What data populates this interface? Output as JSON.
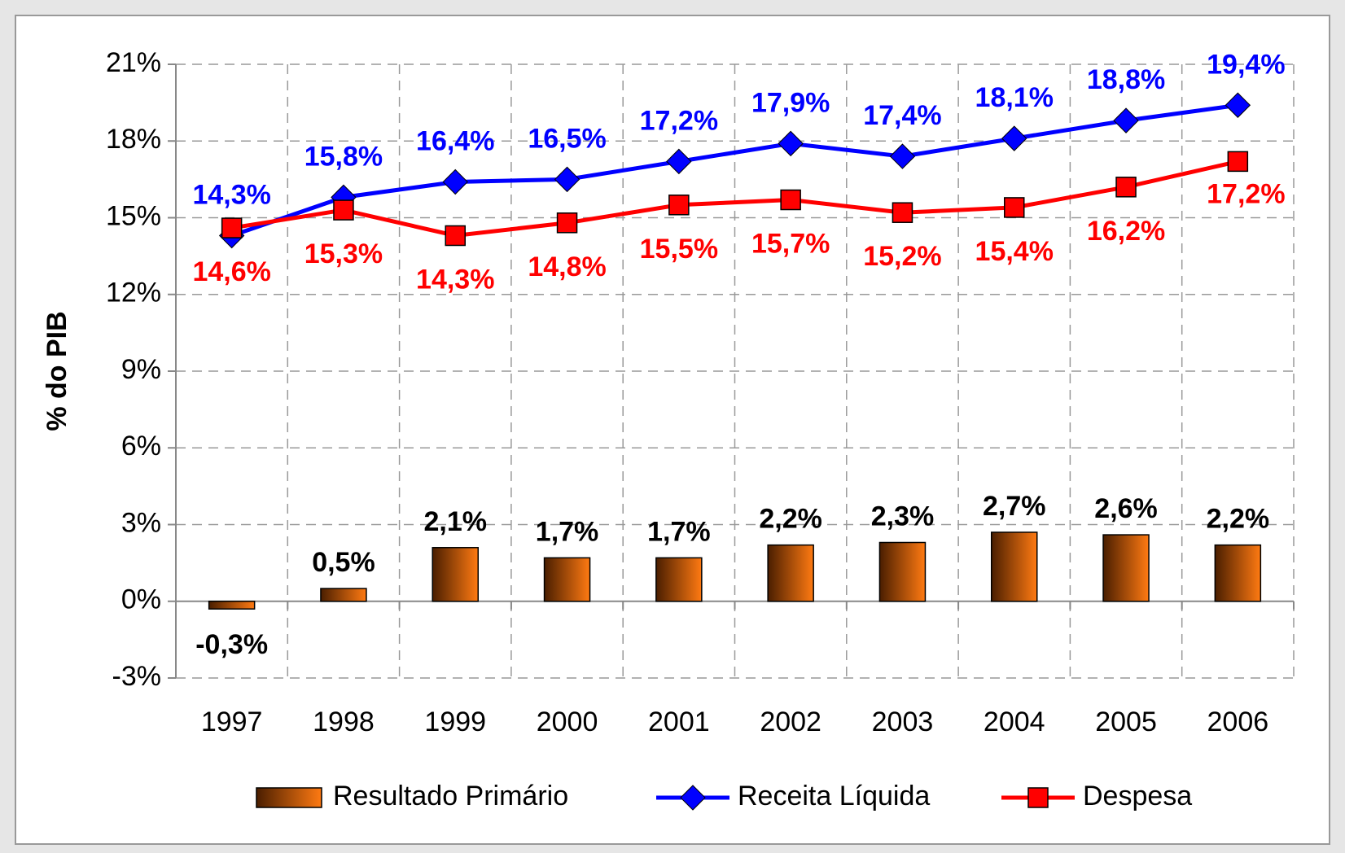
{
  "chart_data": {
    "type": "combo",
    "y_label": "% do PIB",
    "categories": [
      "1997",
      "1998",
      "1999",
      "2000",
      "2001",
      "2002",
      "2003",
      "2004",
      "2005",
      "2006"
    ],
    "ylim": [
      -3,
      21
    ],
    "yticks": [
      {
        "value": -3,
        "label": "-3%"
      },
      {
        "value": 0,
        "label": "0%"
      },
      {
        "value": 3,
        "label": "3%"
      },
      {
        "value": 6,
        "label": "6%"
      },
      {
        "value": 9,
        "label": "9%"
      },
      {
        "value": 12,
        "label": "12%"
      },
      {
        "value": 15,
        "label": "15%"
      },
      {
        "value": 18,
        "label": "18%"
      },
      {
        "value": 21,
        "label": "21%"
      }
    ],
    "grid": true,
    "legend": "bottom",
    "series": [
      {
        "name": "Resultado Primário",
        "type": "bar",
        "color": "#ff7a12",
        "label_color": "#000000",
        "values": [
          -0.3,
          0.5,
          2.1,
          1.7,
          1.7,
          2.2,
          2.3,
          2.7,
          2.6,
          2.2
        ],
        "value_labels": [
          "-0,3%",
          "0,5%",
          "2,1%",
          "1,7%",
          "1,7%",
          "2,2%",
          "2,3%",
          "2,7%",
          "2,6%",
          "2,2%"
        ]
      },
      {
        "name": "Receita Líquida",
        "type": "line",
        "marker": "diamond",
        "color": "#0000ff",
        "label_color": "#0000ff",
        "values": [
          14.3,
          15.8,
          16.4,
          16.5,
          17.2,
          17.9,
          17.4,
          18.1,
          18.8,
          19.4
        ],
        "value_labels": [
          "14,3%",
          "15,8%",
          "16,4%",
          "16,5%",
          "17,2%",
          "17,9%",
          "17,4%",
          "18,1%",
          "18,8%",
          "19,4%"
        ]
      },
      {
        "name": "Despesa",
        "type": "line",
        "marker": "square",
        "color": "#ff0000",
        "label_color": "#ff0000",
        "values": [
          14.6,
          15.3,
          14.3,
          14.8,
          15.5,
          15.7,
          15.2,
          15.4,
          16.2,
          17.2
        ],
        "value_labels": [
          "14,6%",
          "15,3%",
          "14,3%",
          "14,8%",
          "15,5%",
          "15,7%",
          "15,2%",
          "15,4%",
          "16,2%",
          "17,2%"
        ]
      }
    ]
  }
}
